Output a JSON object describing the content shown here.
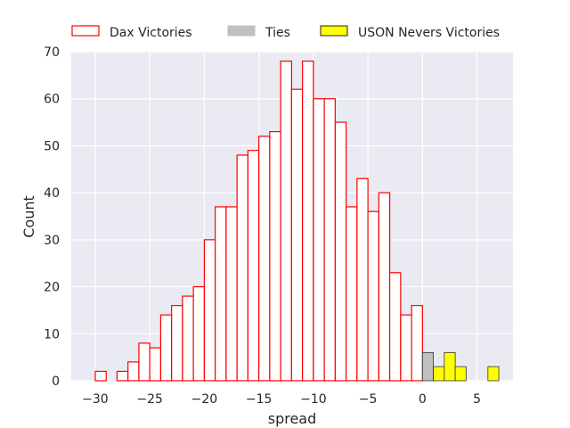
{
  "chart_data": {
    "type": "bar",
    "xlabel": "spread",
    "ylabel": "Count",
    "xlim": [
      -32.2,
      8.3
    ],
    "ylim": [
      0,
      70
    ],
    "xticks": [
      -30,
      -25,
      -20,
      -15,
      -10,
      -5,
      0,
      5
    ],
    "yticks": [
      0,
      10,
      20,
      30,
      40,
      50,
      60,
      70
    ],
    "xtick_labels": [
      "−30",
      "−25",
      "−20",
      "−15",
      "−10",
      "−5",
      "0",
      "5"
    ],
    "ytick_labels": [
      "0",
      "10",
      "20",
      "30",
      "40",
      "50",
      "60",
      "70"
    ],
    "grid": true,
    "legend_placement": "top (above plot, 3 columns)",
    "background_color": "#eaeaf2",
    "series": [
      {
        "name": "Dax Victories",
        "style": "outline",
        "edge_color": "#ff0000",
        "fill_color": "#ffffff",
        "bins": [
          {
            "x": -30,
            "count": 2
          },
          {
            "x": -28,
            "count": 2
          },
          {
            "x": -27,
            "count": 4
          },
          {
            "x": -26,
            "count": 8
          },
          {
            "x": -25,
            "count": 7
          },
          {
            "x": -24,
            "count": 14
          },
          {
            "x": -23,
            "count": 16
          },
          {
            "x": -22,
            "count": 18
          },
          {
            "x": -21,
            "count": 20
          },
          {
            "x": -20,
            "count": 30
          },
          {
            "x": -19,
            "count": 37
          },
          {
            "x": -18,
            "count": 37
          },
          {
            "x": -17,
            "count": 48
          },
          {
            "x": -16,
            "count": 49
          },
          {
            "x": -15,
            "count": 52
          },
          {
            "x": -14,
            "count": 53
          },
          {
            "x": -13,
            "count": 68
          },
          {
            "x": -12,
            "count": 62
          },
          {
            "x": -11,
            "count": 68
          },
          {
            "x": -10,
            "count": 60
          },
          {
            "x": -9,
            "count": 60
          },
          {
            "x": -8,
            "count": 55
          },
          {
            "x": -7,
            "count": 37
          },
          {
            "x": -6,
            "count": 43
          },
          {
            "x": -5,
            "count": 36
          },
          {
            "x": -4,
            "count": 40
          },
          {
            "x": -3,
            "count": 23
          },
          {
            "x": -2,
            "count": 14
          },
          {
            "x": -1,
            "count": 16
          }
        ]
      },
      {
        "name": "Ties",
        "style": "filled",
        "edge_color": "#333333",
        "fill_color": "#c0c0c0",
        "bins": [
          {
            "x": 0,
            "count": 6
          }
        ]
      },
      {
        "name": "USON Nevers Victories",
        "style": "filled",
        "edge_color": "#333333",
        "fill_color": "#ffff00",
        "bins": [
          {
            "x": 1,
            "count": 3
          },
          {
            "x": 2,
            "count": 6
          },
          {
            "x": 3,
            "count": 3
          },
          {
            "x": 6,
            "count": 3
          }
        ]
      }
    ]
  }
}
